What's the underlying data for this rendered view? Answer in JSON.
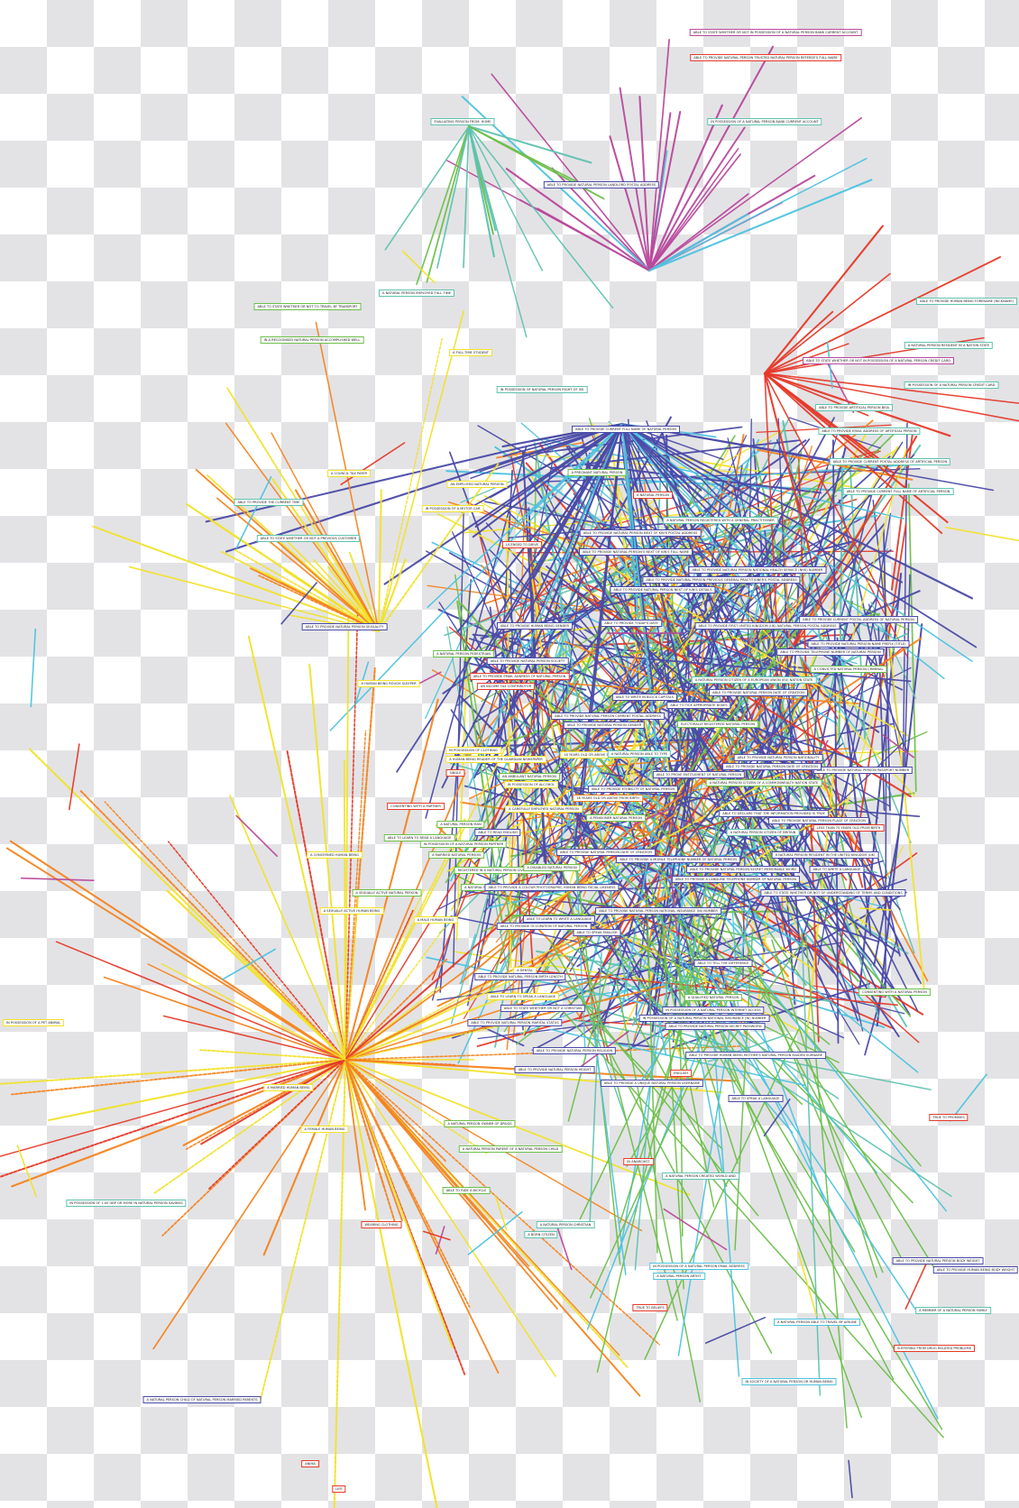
{
  "colors": {
    "indigo": "#4a4aa8",
    "teal": "#5fc3b0",
    "cyan": "#4ec3e0",
    "green": "#6cbf4a",
    "yellow": "#f2e22a",
    "orange": "#f5841f",
    "red": "#e63a2a",
    "magenta": "#b9499c"
  },
  "hubs": [
    {
      "id": "h_orange",
      "color": "orange",
      "count": 85
    },
    {
      "id": "h_magenta",
      "color": "magenta",
      "count": 26
    },
    {
      "id": "h_indigo_a",
      "color": "indigo",
      "count": 60
    },
    {
      "id": "h_red",
      "color": "red",
      "count": 18
    },
    {
      "id": "h_teal",
      "color": "teal",
      "count": 14
    }
  ],
  "nodes": [
    {
      "label": "ABLE TO STATE WHETHER OR NOT IN POSSESSION OF A NATURAL PERSON BANK CURRENT ACCOUNT",
      "color": "magenta"
    },
    {
      "label": "ABLE TO PROVIDE NATURAL PERSON TRUSTED NATURAL PERSON REFEREE'S FULL NAME",
      "color": "red"
    },
    {
      "label": "IN POSSESSION OF A NATURAL PERSON BANK CURRENT ACCOUNT",
      "color": "teal"
    },
    {
      "label": "EVALUATING PERSON FROM: HOME",
      "color": "teal"
    },
    {
      "label": "ABLE TO PROVIDE NATURAL PERSON LANDLORD POSTAL ADDRESS",
      "color": "indigo"
    },
    {
      "label": "ABLE TO STATE WHETHER OR NOT TO TRAVEL BY TRANSPORT",
      "color": "green"
    },
    {
      "label": "A NATURAL PERSON EMPLOYED FULL TIME",
      "color": "teal"
    },
    {
      "label": "IN A RECOGNISED NATURAL PERSON ACCOMPLISHED WELL",
      "color": "green"
    },
    {
      "label": "A FULL-TIME STUDENT",
      "color": "yellow"
    },
    {
      "label": "ABLE TO PROVIDE HUMAN BEING FORENAME (NICKNAME)",
      "color": "teal"
    },
    {
      "label": "A NATURAL PERSON RESIDENT IN A NATION STATE",
      "color": "teal"
    },
    {
      "label": "ABLE TO STATE WHETHER OR NOT IN POSSESSION OF A NATURAL PERSON CREDIT CARD",
      "color": "magenta"
    },
    {
      "label": "IN POSSESSION OF A NATURAL PERSON CREDIT CARD",
      "color": "teal"
    },
    {
      "label": "IN POSSESSION OF NATURAL PERSON RIGHT OF ISS",
      "color": "teal"
    },
    {
      "label": "ABLE TO PROVIDE ARTIFICIAL PERSON BEIA",
      "color": "teal"
    },
    {
      "label": "ABLE TO PROVIDE CURRENT FULL NAME OF NATURAL PERSON",
      "color": "indigo"
    },
    {
      "label": "ABLE TO PROVIDE EMAIL ADDRESS OF ARTIFICIAL PERSON",
      "color": "teal"
    },
    {
      "label": "ABLE TO PROVIDE CURRENT POSTAL ADDRESS OF ARTIFICIAL PERSON",
      "color": "teal"
    },
    {
      "label": "A COUNCIL TAX PAYER",
      "color": "yellow"
    },
    {
      "label": "A PREGNANT NATURAL PERSON",
      "color": "green"
    },
    {
      "label": "AN EMPLOYED NATURAL PERSON",
      "color": "yellow"
    },
    {
      "label": "ABLE TO PROVIDE CURRENT FULL NAME OF ARTIFICIAL PERSON",
      "color": "teal"
    },
    {
      "label": "ABLE TO PROVIDE THE CURRENT TIME",
      "color": "teal"
    },
    {
      "label": "IN POSSESSION OF A MOTOR CAR",
      "color": "yellow"
    },
    {
      "label": "A NATURAL PERSON",
      "color": "red"
    },
    {
      "label": "A NATURAL PERSON REGISTERED WITH A GENERAL PRACTITIONER",
      "color": "teal"
    },
    {
      "label": "ABLE TO STATE WHETHER OR NOT A PREVIOUS CUSTOMER",
      "color": "teal"
    },
    {
      "label": "LICENSED TO DRIVE",
      "color": "red"
    },
    {
      "label": "ABLE TO PROVIDE NATURAL PERSON NEXT OF KIN'S POSTAL ADDRESS",
      "color": "indigo"
    },
    {
      "label": "ABLE TO PROVIDE NATURAL PERSON'S NEXT OF KIN'S FULL NAME",
      "color": "indigo"
    },
    {
      "label": "ABLE TO PROVIDE NATURAL PERSON NATIONAL HEALTH SERVICE (NHS) NUMBER",
      "color": "indigo"
    },
    {
      "label": "ABLE TO PROVIDE NATURAL PERSON PREVIOUS GENERAL PRACTITIONER'S POSTAL ADDRESS",
      "color": "indigo"
    },
    {
      "label": "ABLE TO PROVIDE NATURAL PERSON NEXT OF KIN'S DETAILS",
      "color": "indigo"
    },
    {
      "label": "ABLE TO PROVIDE NATURAL PERSON SEXUALITY",
      "color": "indigo"
    },
    {
      "label": "ABLE TO PROVIDE CURRENT POSTAL ADDRESS OF NATURAL PERSON",
      "color": "indigo"
    },
    {
      "label": "ABLE TO PROVIDE FIRST UNITED KINGDOM (UK) NATURAL PERSON POSTAL ADDRESS",
      "color": "indigo"
    },
    {
      "label": "ABLE TO PROVIDE HUMAN BEING GENDER",
      "color": "indigo"
    },
    {
      "label": "ABLE TO PROVIDE TODAY'S DATE",
      "color": "indigo"
    },
    {
      "label": "A NATURAL PERSON PEDESTRIAN",
      "color": "green"
    },
    {
      "label": "ABLE TO PROVIDE NATURAL PERSON NAME PREFIX (TITLE)",
      "color": "indigo"
    },
    {
      "label": "ABLE TO PROVIDE TELEPHONE NUMBER OF NATURAL PERSON",
      "color": "indigo"
    },
    {
      "label": "ABLE TO PROVIDE NATURAL PERSON SOCIETY",
      "color": "indigo"
    },
    {
      "label": "A CONVICTED NATURAL PERSON CRIMINAL",
      "color": "green"
    },
    {
      "label": "A HUMAN BEING ROUGH SLEEPER",
      "color": "yellow"
    },
    {
      "label": "ABLE TO PROVIDE EMAIL ADDRESS OF NATURAL PERSON",
      "color": "red"
    },
    {
      "label": "AN INCOME TAX CONTRIBUTOR",
      "color": "red"
    },
    {
      "label": "A NATURAL PERSON CITIZEN OF A EUROPEAN UNION (EU) NATION STATE",
      "color": "teal"
    },
    {
      "label": "ABLE TO PROVIDE NATURAL PERSON DATE OF CREATION",
      "color": "indigo"
    },
    {
      "label": "ABLE TO WRITE IN BLOCK CAPITALS",
      "color": "indigo"
    },
    {
      "label": "ABLE TO PROVIDE NATURAL PERSON CURRENT POSTAL ADDRESS",
      "color": "indigo"
    },
    {
      "label": "ABLE TO TICK APPROPRIATE BOXES",
      "color": "indigo"
    },
    {
      "label": "ELECTORALLY REGISTERED NATURAL PERSON",
      "color": "green"
    },
    {
      "label": "ABLE TO PROVIDE NATURAL PERSON GENDER",
      "color": "indigo"
    },
    {
      "label": "IN POSSESSION OF CLOTHING",
      "color": "yellow"
    },
    {
      "label": "ABLE TO PROVIDE NATURAL PERSON NATIONALITY",
      "color": "indigo"
    },
    {
      "label": "A HUMAN BEING READER OF THE GUARDIAN NEWSPAPER",
      "color": "yellow"
    },
    {
      "label": "18 YEARS OLD OR ABOVE FROM BIRTH",
      "color": "yellow"
    },
    {
      "label": "ABLE TO PROVIDE NATURAL PERSON PASSPORT NUMBER",
      "color": "indigo"
    },
    {
      "label": "ABLE TO PROVIDE NATURAL PERSON DATE OF CREATION",
      "color": "indigo"
    },
    {
      "label": "ABLE TO PROVE ENTITLEMENT OF NATURAL PERSON",
      "color": "indigo"
    },
    {
      "label": "A NATURAL PERSON CITIZEN OF A COMMONWEALTH NATION STATE",
      "color": "green"
    },
    {
      "label": "ABLE TO PROVIDE ETHNICITY OF NATURAL PERSON",
      "color": "indigo"
    },
    {
      "label": "AN AMBULANT NATURAL PERSON",
      "color": "green"
    },
    {
      "label": "IN POSSESSION OF ALCOHOL",
      "color": "yellow"
    },
    {
      "label": "A NATURAL PERSON ABLE TO TYPE",
      "color": "teal"
    },
    {
      "label": "SINGLE",
      "color": "red"
    },
    {
      "label": "CONSENTING WITH A PARTNER",
      "color": "red"
    },
    {
      "label": "16 YEARS OLD OR ABOVE FROM BIRTH",
      "color": "orange"
    },
    {
      "label": "A CAREFULLY EMPLOYED NATURAL PERSON",
      "color": "yellow"
    },
    {
      "label": "A PENSIONER NATURAL PERSON",
      "color": "green"
    },
    {
      "label": "ABLE TO DECLARE THAT THE INFORMATION PROVIDED IS TRUE",
      "color": "indigo"
    },
    {
      "label": "ABLE TO PROVIDE NATURAL PERSON PLACE OF CREATION",
      "color": "indigo"
    },
    {
      "label": "A NATURAL PERSON CITIZEN OF BRITAIN",
      "color": "teal"
    },
    {
      "label": "LESS THAN 70 YEARS OLD FROM BIRTH",
      "color": "red"
    },
    {
      "label": "A NATURAL PERSON MAN",
      "color": "green"
    },
    {
      "label": "ABLE TO READ ENGLISH",
      "color": "indigo"
    },
    {
      "label": "ABLE TO LEARN TO READ A LANGUAGE",
      "color": "green"
    },
    {
      "label": "IN POSSESSION OF A NATURAL PERSON PARTNER",
      "color": "green"
    },
    {
      "label": "A MARRIED NATURAL PERSON",
      "color": "green"
    },
    {
      "label": "ABLE TO PROVIDE NATURAL PERSON DATE OF CREATION",
      "color": "indigo"
    },
    {
      "label": "ABLE TO PROVIDE A MOBILE TELEPHONE NUMBER OF NATURAL PERSON",
      "color": "indigo"
    },
    {
      "label": "A NATURAL PERSON RESIDENT IN THE UNITED KINGDOM (UK)",
      "color": "indigo"
    },
    {
      "label": "A CONCERNED HUMAN BEING",
      "color": "yellow"
    },
    {
      "label": "REGISTERED IN A NATURAL PERSON CIVIL PARTNERSHIP",
      "color": "green"
    },
    {
      "label": "A DISABLED NATURAL PERSON",
      "color": "green"
    },
    {
      "label": "ABLE TO PROVIDE NATURAL PERSON SECRET MEMORABLE WORD",
      "color": "indigo"
    },
    {
      "label": "ABLE TO PROVIDE A LANDLINE TELEPHONE NUMBER OF NATURAL PERSON",
      "color": "indigo"
    },
    {
      "label": "ABLE TO WRITE A LANGUAGE",
      "color": "indigo"
    },
    {
      "label": "A SEXUALLY ACTIVE NATURAL PERSON",
      "color": "green"
    },
    {
      "label": "A NATURAL PERSON",
      "color": "green"
    },
    {
      "label": "ABLE TO PROVIDE A COLOUR PHOTOGRAPHIC HUMAN BEING FACIAL LIKENESS",
      "color": "indigo"
    },
    {
      "label": "ABLE TO STATE WHETHER OR NOT OF UNDERSTANDING OF TERMS AND CONDITIONS",
      "color": "indigo"
    },
    {
      "label": "A SEXUALLY ACTIVE HUMAN BEING",
      "color": "yellow"
    },
    {
      "label": "ABLE TO PROVIDE NATURAL PERSON NATIONAL INSURANCE (NI) NUMBER",
      "color": "indigo"
    },
    {
      "label": "A MALE HUMAN BEING",
      "color": "yellow"
    },
    {
      "label": "ABLE TO LEARN TO WRITE A LANGUAGE",
      "color": "indigo"
    },
    {
      "label": "ABLE TO PROVIDE OCCUPATION OF NATURAL PERSON",
      "color": "indigo"
    },
    {
      "label": "ABLE TO SPEAK ENGLISH",
      "color": "indigo"
    },
    {
      "label": "A DENTAL",
      "color": "yellow"
    },
    {
      "label": "ABLE TO PROVIDE NATURAL PERSON MARITAL STATUS",
      "color": "indigo"
    },
    {
      "label": "ABLE TO PROVIDE NATURAL PERSON BIRTH LENGTH",
      "color": "indigo"
    },
    {
      "label": "ABLE TO LEARN TO SPEAK A LANGUAGE",
      "color": "yellow"
    },
    {
      "label": "ABLE TO STATE WHETHER OR NOT A CHRISTIAN",
      "color": "indigo"
    },
    {
      "label": "A QUALIFIED NATURAL PERSON",
      "color": "green"
    },
    {
      "label": "IN POSSESSION OF A NATURAL PERSON INTERNET ACCESS",
      "color": "indigo"
    },
    {
      "label": "IN POSSESSION OF A NATURAL PERSON NATIONAL INSURANCE (NI) NUMBER",
      "color": "indigo"
    },
    {
      "label": "ABLE TO PROVIDE NATURAL PERSON SECRET PASSWORD",
      "color": "indigo"
    },
    {
      "label": "ABLE TO TELL THE DIFFERENCE",
      "color": "indigo"
    },
    {
      "label": "CONSENTING WITH A NATURAL PERSON",
      "color": "green"
    },
    {
      "label": "IN POSSESSION OF A PET ANIMAL",
      "color": "yellow"
    },
    {
      "label": "ABLE TO PROVIDE NATURAL PERSON RELIGION",
      "color": "indigo"
    },
    {
      "label": "A MARRIED HUMAN BEING",
      "color": "yellow"
    },
    {
      "label": "ABLE TO PROVIDE HUMAN BEING MOTHER'S NATURAL PERSON MAIDEN SURNAME",
      "color": "indigo"
    },
    {
      "label": "ABLE TO PROVIDE NATURAL PERSON HEIGHT",
      "color": "indigo"
    },
    {
      "label": "ENGLISH",
      "color": "red"
    },
    {
      "label": "ABLE TO PROVIDE A UNIQUE NATURAL PERSON USERNAME",
      "color": "indigo"
    },
    {
      "label": "ABLE TO SPEAK A LANGUAGE",
      "color": "indigo"
    },
    {
      "label": "A FEMALE HUMAN BEING",
      "color": "yellow"
    },
    {
      "label": "TRUE TO PROMISES",
      "color": "red"
    },
    {
      "label": "A NATURAL PERSON OWNER OF DRUGS",
      "color": "green"
    },
    {
      "label": "A NATURAL PERSON PARENT OF A NATURAL PERSON CHILD",
      "color": "green"
    },
    {
      "label": "IN ANARCHIST",
      "color": "red"
    },
    {
      "label": "A NATURAL PERSON CREATED WORLD AND",
      "color": "teal"
    },
    {
      "label": "ABLE TO RIDE A BICYCLE",
      "color": "green"
    },
    {
      "label": "IN POSSESSION OF 1.00 GBP OR MORE IN NATURAL PERSON SAVINGS",
      "color": "teal"
    },
    {
      "label": "WEARING CLOTHING",
      "color": "red"
    },
    {
      "label": "A NATURAL PERSON CHRISTIAN",
      "color": "teal"
    },
    {
      "label": "A BORN CITIZEN",
      "color": "teal"
    },
    {
      "label": "IN POSSESSION OF A NATURAL PERSON EMAIL ADDRESS",
      "color": "cyan"
    },
    {
      "label": "A NATURAL PERSON ARTIST",
      "color": "cyan"
    },
    {
      "label": "ABLE TO PROVIDE NATURAL PERSON BODY WEIGHT",
      "color": "indigo"
    },
    {
      "label": "ABLE TO PROVIDE HUMAN BEING BODY WEIGHT",
      "color": "indigo"
    },
    {
      "label": "TRUE TO BELIEFS",
      "color": "red"
    },
    {
      "label": "A MEMBER OF A NATURAL PERSON FAMILY",
      "color": "teal"
    },
    {
      "label": "A NATURAL PERSON ABLE TO TRAVEL BY AIRLINE",
      "color": "cyan"
    },
    {
      "label": "SUFFERING FROM DRUG RELATED PROBLEMS",
      "color": "red"
    },
    {
      "label": "IN SOCIETY OF A NATURAL PERSON OR HUMAN BEING",
      "color": "cyan"
    },
    {
      "label": "A NATURAL PERSON CHILD OF NATURAL PERSON MARRIED PARENTS",
      "color": "indigo"
    },
    {
      "label": "ANIMA",
      "color": "red"
    },
    {
      "label": "LIFE",
      "color": "red"
    }
  ]
}
